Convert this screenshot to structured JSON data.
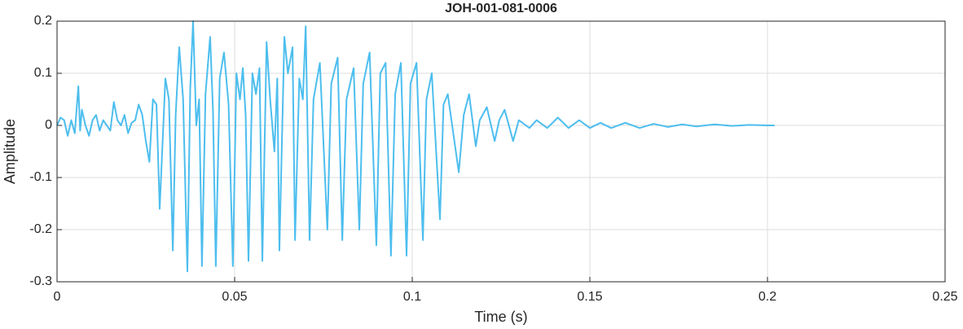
{
  "chart_data": {
    "type": "line",
    "title": "JOH-001-081-0006",
    "x_label": "Time (s)",
    "y_label": "Amplitude",
    "x": [
      0,
      0.001,
      0.002,
      0.003,
      0.004,
      0.005,
      0.006,
      0.0065,
      0.007,
      0.008,
      0.009,
      0.01,
      0.011,
      0.012,
      0.013,
      0.014,
      0.015,
      0.016,
      0.017,
      0.018,
      0.019,
      0.02,
      0.021,
      0.022,
      0.023,
      0.024,
      0.025,
      0.026,
      0.027,
      0.028,
      0.0289,
      0.0305,
      0.0315,
      0.0326,
      0.0334,
      0.0344,
      0.0355,
      0.0367,
      0.0375,
      0.0383,
      0.0392,
      0.04,
      0.0408,
      0.0418,
      0.0431,
      0.0439,
      0.0447,
      0.0458,
      0.047,
      0.0483,
      0.0495,
      0.0505,
      0.0515,
      0.0523,
      0.0531,
      0.0539,
      0.055,
      0.056,
      0.057,
      0.0578,
      0.059,
      0.06,
      0.0612,
      0.062,
      0.0626,
      0.064,
      0.065,
      0.0663,
      0.067,
      0.0682,
      0.0692,
      0.07,
      0.0711,
      0.0722,
      0.074,
      0.0761,
      0.0772,
      0.079,
      0.0803,
      0.0815,
      0.0835,
      0.0851,
      0.0862,
      0.088,
      0.0899,
      0.091,
      0.0925,
      0.094,
      0.0952,
      0.0968,
      0.0984,
      0.0995,
      0.1012,
      0.103,
      0.104,
      0.1055,
      0.1078,
      0.1088,
      0.11,
      0.1131,
      0.1145,
      0.116,
      0.1179,
      0.119,
      0.121,
      0.1232,
      0.1245,
      0.126,
      0.1284,
      0.13,
      0.133,
      0.135,
      0.138,
      0.141,
      0.144,
      0.147,
      0.15,
      0.153,
      0.156,
      0.16,
      0.164,
      0.168,
      0.172,
      0.176,
      0.18,
      0.185,
      0.19,
      0.195,
      0.2,
      0.202
    ],
    "series": [
      {
        "name": "Amplitude",
        "color": "#4dbeee",
        "values": [
          0,
          0.015,
          0.01,
          -0.02,
          0.01,
          -0.015,
          0.075,
          -0.01,
          0.03,
          0,
          -0.02,
          0.01,
          0.02,
          -0.01,
          0.01,
          0,
          -0.01,
          0.045,
          0.01,
          0,
          0.02,
          -0.015,
          0.005,
          0.01,
          0.04,
          0.02,
          -0.03,
          -0.07,
          0.05,
          0.04,
          -0.16,
          0.09,
          0.05,
          -0.24,
          0.02,
          0.15,
          0.05,
          -0.28,
          0.07,
          0.2,
          0,
          0.05,
          -0.27,
          0.06,
          0.17,
          0.03,
          -0.27,
          0.09,
          0.14,
          0.04,
          -0.27,
          0.1,
          0.05,
          0.11,
          0.02,
          -0.26,
          0.1,
          0.06,
          0.11,
          -0.26,
          0.16,
          0.05,
          -0.05,
          0.09,
          -0.24,
          0.17,
          0.1,
          0.15,
          -0.22,
          0.09,
          0.05,
          0.19,
          -0.22,
          0.05,
          0.12,
          -0.2,
          0.08,
          0.13,
          -0.22,
          0.05,
          0.11,
          -0.2,
          0.08,
          0.14,
          -0.23,
          0.1,
          0.12,
          -0.25,
          0.06,
          0.12,
          -0.25,
          0.08,
          0.12,
          -0.22,
          0.05,
          0.1,
          -0.18,
          0.04,
          0.06,
          -0.09,
          0.02,
          0.06,
          -0.04,
          0.01,
          0.035,
          -0.03,
          0.01,
          0.03,
          -0.03,
          0.01,
          -0.005,
          0.01,
          -0.005,
          0.015,
          -0.005,
          0.01,
          -0.005,
          0.005,
          -0.005,
          0.005,
          -0.005,
          0.003,
          -0.003,
          0.002,
          -0.002,
          0.002,
          -0.001,
          0.001,
          0,
          0
        ]
      }
    ],
    "xlim": [
      0,
      0.25
    ],
    "xticks": [
      0,
      0.05,
      0.1,
      0.15,
      0.2,
      0.25
    ],
    "ylim": [
      -0.3,
      0.2
    ],
    "yticks": [
      -0.3,
      -0.2,
      -0.1,
      0,
      0.1,
      0.2
    ],
    "grid": true
  }
}
